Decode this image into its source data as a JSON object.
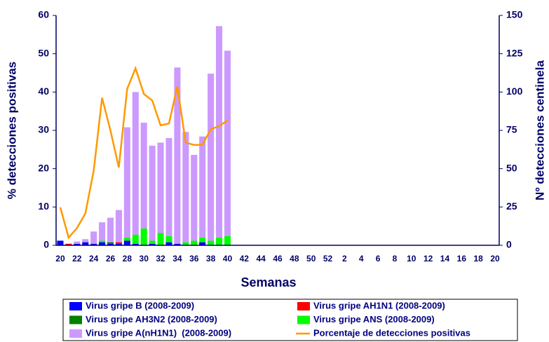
{
  "chart_data": {
    "type": "bar",
    "xlabel": "Semanas",
    "ylabel": "% detecciones positivas",
    "y2label": "Nº detecciones centinela",
    "categories": [
      "20",
      null,
      "22",
      null,
      "24",
      null,
      "26",
      null,
      "28",
      null,
      "30",
      null,
      "32",
      null,
      "34",
      null,
      "36",
      null,
      "38",
      null,
      "40",
      null,
      "42",
      null,
      "44",
      null,
      "46",
      null,
      "48",
      null,
      "50",
      null,
      "52",
      null,
      "2",
      null,
      "4",
      null,
      "6",
      null,
      "8",
      null,
      "10",
      null,
      "12",
      null,
      "14",
      null,
      "16",
      null,
      "18",
      null,
      "20"
    ],
    "ylim": [
      0,
      60
    ],
    "yticks": [
      0,
      10,
      20,
      30,
      40,
      50,
      60
    ],
    "y2lim": [
      0,
      150
    ],
    "y2ticks": [
      0,
      25,
      50,
      75,
      100,
      125,
      150
    ],
    "stacked": true,
    "series": [
      {
        "name": "Virus gripe B (2008-2009)",
        "color": "#0000ff",
        "axis": "y2",
        "values": [
          3,
          0,
          1,
          2,
          1,
          2,
          1,
          1,
          3,
          1,
          0,
          1,
          0,
          2,
          1,
          0,
          0,
          2,
          0,
          0,
          0,
          null,
          null,
          null,
          null,
          null,
          null,
          null,
          null,
          null,
          null,
          null,
          null,
          null,
          null,
          null,
          null,
          null,
          null,
          null,
          null,
          null,
          null,
          null,
          null,
          null,
          null,
          null,
          null,
          null,
          null,
          null,
          null
        ]
      },
      {
        "name": "Virus gripe AH1N1 (2008-2009)",
        "color": "#ff0000",
        "axis": "y2",
        "values": [
          0,
          1,
          0,
          0,
          0,
          0,
          0,
          1,
          0,
          0,
          0,
          0,
          0,
          0,
          0,
          0,
          0,
          0,
          0,
          0,
          0,
          null,
          null,
          null,
          null,
          null,
          null,
          null,
          null,
          null,
          null,
          null,
          null,
          null,
          null,
          null,
          null,
          null,
          null,
          null,
          null,
          null,
          null,
          null,
          null,
          null,
          null,
          null,
          null,
          null,
          null,
          null,
          null
        ]
      },
      {
        "name": "Virus gripe AH3N2 (2008-2009)",
        "color": "#008000",
        "axis": "y2",
        "values": [
          0,
          0,
          0,
          0,
          0,
          0,
          1,
          0,
          0,
          0,
          0,
          0,
          0,
          0,
          0,
          0,
          0,
          0,
          0,
          0,
          0,
          null,
          null,
          null,
          null,
          null,
          null,
          null,
          null,
          null,
          null,
          null,
          null,
          null,
          null,
          null,
          null,
          null,
          null,
          null,
          null,
          null,
          null,
          null,
          null,
          null,
          null,
          null,
          null,
          null,
          null,
          null,
          null
        ]
      },
      {
        "name": "Virus gripe ANS (2008-2009)",
        "color": "#00ff00",
        "axis": "y2",
        "values": [
          0,
          0,
          0,
          0,
          0,
          1,
          0,
          0,
          2,
          6,
          11,
          2,
          8,
          4,
          0,
          2,
          3,
          3,
          3,
          5,
          6,
          null,
          null,
          null,
          null,
          null,
          null,
          null,
          null,
          null,
          null,
          null,
          null,
          null,
          null,
          null,
          null,
          null,
          null,
          null,
          null,
          null,
          null,
          null,
          null,
          null,
          null,
          null,
          null,
          null,
          null,
          null,
          null
        ]
      },
      {
        "name": "Virus gripe A(nH1N1)  (2008-2009)",
        "color": "#cc99ff",
        "axis": "y2",
        "values": [
          0,
          0,
          1.5,
          2,
          8,
          12,
          16,
          21,
          72,
          93,
          69,
          62,
          59,
          64,
          115,
          72,
          56,
          66,
          109,
          138,
          121,
          null,
          null,
          null,
          null,
          null,
          null,
          null,
          null,
          null,
          null,
          null,
          null,
          null,
          null,
          null,
          null,
          null,
          null,
          null,
          null,
          null,
          null,
          null,
          null,
          null,
          null,
          null,
          null,
          null,
          null,
          null,
          null
        ]
      },
      {
        "name": "Porcentaje de detecciones positivas",
        "color": "#ff9900",
        "type": "line",
        "values": [
          9.9,
          2,
          4.5,
          8.3,
          19.5,
          38.5,
          30,
          20.3,
          40.8,
          46.2,
          39.5,
          37.8,
          31.3,
          31.8,
          41.5,
          26.8,
          26.2,
          26.2,
          30.3,
          31.1,
          32.6,
          null,
          null,
          null,
          null,
          null,
          null,
          null,
          null,
          null,
          null,
          null,
          null,
          null,
          null,
          null,
          null,
          null,
          null,
          null,
          null,
          null,
          null,
          null,
          null,
          null,
          null,
          null,
          null,
          null,
          null,
          null,
          null
        ]
      }
    ]
  }
}
